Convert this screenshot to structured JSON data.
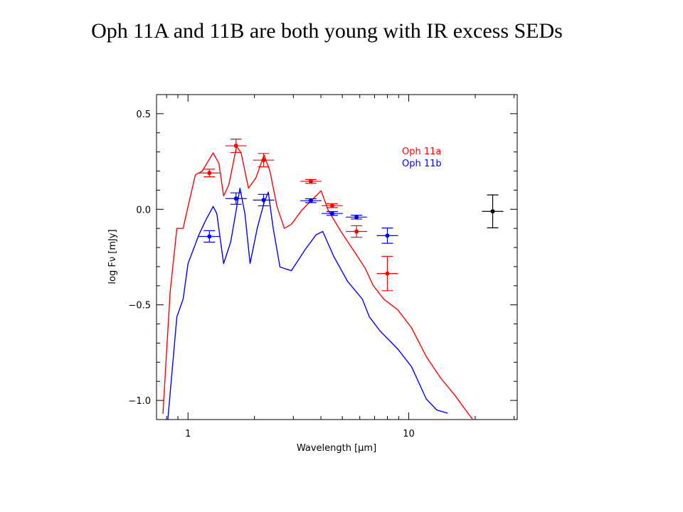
{
  "chart_data": {
    "type": "line",
    "title": "Oph 11A and 11B are both young with IR excess SEDs",
    "xlabel": "Wavelength [μm]",
    "ylabel": "log Fν [mJy]",
    "xscale": "log",
    "xlim": [
      0.72,
      31
    ],
    "ylim": [
      -1.1,
      0.6
    ],
    "xticks": [
      1,
      10
    ],
    "xminorticks": [
      0.8,
      0.9,
      2,
      3,
      4,
      5,
      6,
      7,
      8,
      9,
      20,
      30
    ],
    "yticks": [
      0.5,
      {
        "value": 0,
        "label": "0.0"
      },
      {
        "value": -0.5,
        "label": "−0.5"
      },
      {
        "value": -1.0,
        "label": "−1.0"
      }
    ],
    "yminorticks": [
      0.4,
      0.3,
      0.2,
      0.1,
      -0.1,
      -0.2,
      -0.3,
      -0.4,
      -0.6,
      -0.7,
      -0.8,
      -0.9
    ],
    "legend": "upper right",
    "series": [
      {
        "name": "Oph 11a",
        "color": "#ff0000",
        "x": [
          0.77,
          0.83,
          0.89,
          0.95,
          1.0,
          1.08,
          1.16,
          1.3,
          1.38,
          1.45,
          1.53,
          1.66,
          1.74,
          1.88,
          2.03,
          2.21,
          2.35,
          2.53,
          2.73,
          2.94,
          3.28,
          3.67,
          4.01,
          4.31,
          4.93,
          5.72,
          6.38,
          6.88,
          7.7,
          8.92,
          10.3,
          12.0,
          13.9,
          16.2,
          19.5
        ],
        "values": [
          -1.07,
          -0.43,
          -0.1,
          -0.1,
          0.015,
          0.18,
          0.2,
          0.295,
          0.24,
          0.07,
          0.127,
          0.33,
          0.295,
          0.11,
          0.164,
          0.284,
          0.2,
          0.015,
          -0.1,
          -0.078,
          -0.004,
          0.052,
          0.097,
          -0.004,
          -0.116,
          -0.228,
          -0.313,
          -0.396,
          -0.47,
          -0.526,
          -0.62,
          -0.77,
          -0.88,
          -0.974,
          -1.1
        ],
        "photometry": {
          "x": [
            1.25,
            1.65,
            2.2,
            3.6,
            4.5,
            5.8,
            8.0
          ],
          "values": [
            0.19,
            0.332,
            0.257,
            0.146,
            0.019,
            -0.116,
            -0.336
          ],
          "errors": [
            0.02,
            0.035,
            0.035,
            0.01,
            0.01,
            0.03,
            0.09
          ]
        }
      },
      {
        "name": "Oph 11b",
        "color": "#0000ff",
        "x": [
          0.81,
          0.89,
          0.95,
          1.0,
          1.12,
          1.2,
          1.3,
          1.35,
          1.45,
          1.56,
          1.72,
          1.81,
          1.91,
          2.06,
          2.21,
          2.31,
          2.43,
          2.61,
          2.94,
          3.4,
          3.8,
          4.08,
          4.57,
          5.28,
          6.16,
          6.63,
          7.43,
          8.92,
          10.3,
          12.0,
          13.4,
          15.0
        ],
        "values": [
          -1.1,
          -0.563,
          -0.47,
          -0.284,
          -0.134,
          -0.06,
          0.015,
          -0.022,
          -0.284,
          -0.172,
          0.11,
          -0.022,
          -0.284,
          -0.097,
          0.034,
          0.09,
          -0.097,
          -0.302,
          -0.321,
          -0.209,
          -0.134,
          -0.116,
          -0.246,
          -0.377,
          -0.47,
          -0.563,
          -0.638,
          -0.731,
          -0.824,
          -0.992,
          -1.05,
          -1.067
        ],
        "photometry": {
          "x": [
            1.25,
            1.65,
            2.2,
            3.6,
            4.5,
            5.8,
            8.0
          ],
          "values": [
            -0.142,
            0.056,
            0.048,
            0.045,
            -0.022,
            -0.041,
            -0.138
          ],
          "errors": [
            0.03,
            0.03,
            0.03,
            0.01,
            0.01,
            0.01,
            0.04
          ]
        }
      }
    ],
    "reference_point": {
      "color": "#000000",
      "x": 24,
      "value": -0.011,
      "error": 0.086
    }
  }
}
